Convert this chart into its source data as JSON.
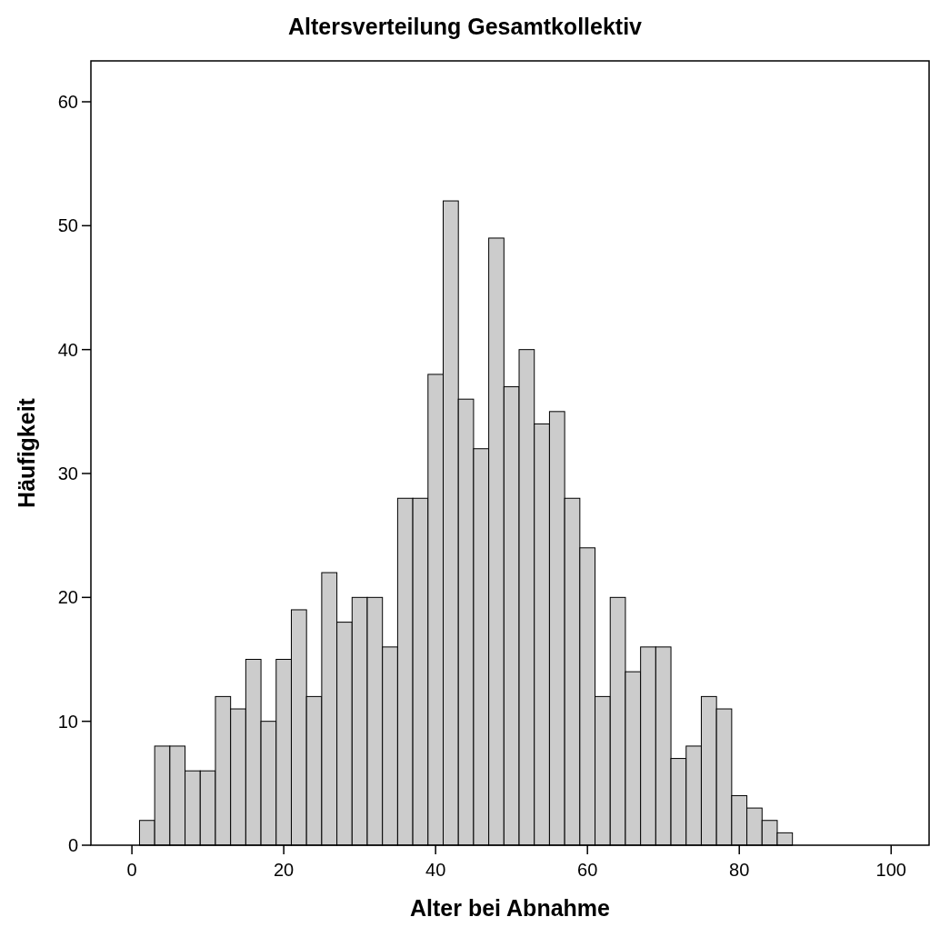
{
  "chart_data": {
    "type": "histogram",
    "title": "Altersverteilung Gesamtkollektiv",
    "xlabel": "Alter bei Abnahme",
    "ylabel": "Häufigkeit",
    "bins": [
      1,
      3,
      5,
      7,
      9,
      11,
      13,
      15,
      17,
      19,
      21,
      23,
      25,
      27,
      29,
      31,
      33,
      35,
      37,
      39,
      41,
      43,
      45,
      47,
      49,
      51,
      53,
      55,
      57,
      59,
      61,
      63,
      65,
      67,
      69,
      71,
      73,
      75,
      77,
      79,
      81,
      83,
      85,
      87
    ],
    "values": [
      2,
      8,
      8,
      6,
      6,
      12,
      11,
      15,
      10,
      15,
      19,
      12,
      22,
      18,
      20,
      20,
      16,
      28,
      28,
      38,
      52,
      36,
      32,
      49,
      37,
      40,
      34,
      35,
      28,
      24,
      12,
      20,
      14,
      16,
      16,
      7,
      8,
      12,
      11,
      4,
      3,
      2,
      1
    ],
    "color": "#cccccc",
    "xlim": [
      -5.4,
      105
    ],
    "ylim": [
      0,
      63.3
    ],
    "xticks": [
      0,
      20,
      40,
      60,
      80,
      100
    ],
    "yticks": [
      0,
      10,
      20,
      30,
      40,
      50,
      60
    ],
    "grid": false
  }
}
